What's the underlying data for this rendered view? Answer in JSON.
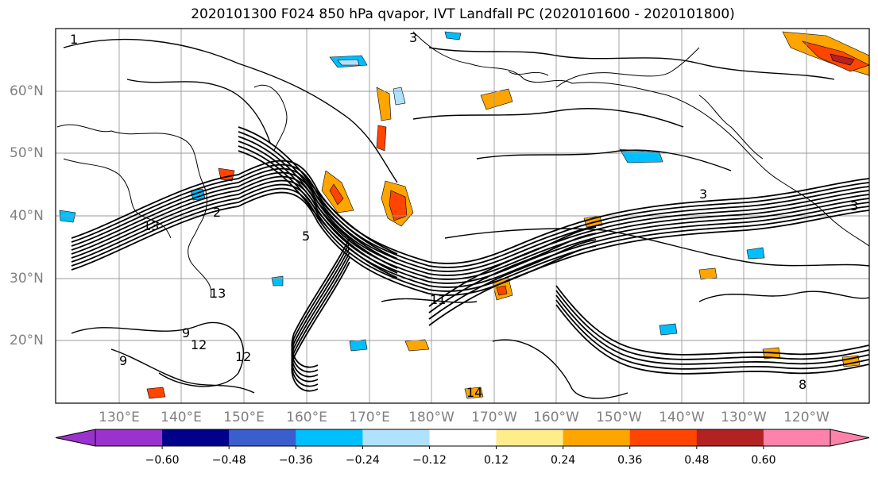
{
  "title": "2020101300 F024 850 hPa qvapor, IVT Landfall PC (2020101600 - 2020101800)",
  "lat_labels": [
    "60°N",
    "50°N",
    "40°N",
    "30°N",
    "20°N"
  ],
  "lon_labels": [
    "130°E",
    "140°E",
    "150°E",
    "160°E",
    "170°E",
    "180°W",
    "170°W",
    "160°W",
    "150°W",
    "140°W",
    "130°W",
    "120°W"
  ],
  "colorbar": {
    "ticks": [
      "−0.60",
      "−0.48",
      "−0.36",
      "−0.24",
      "−0.12",
      "0.12",
      "0.24",
      "0.36",
      "0.48",
      "0.60"
    ],
    "colors": [
      "#9a32cd",
      "#00008b",
      "#3a5fcd",
      "#00bfff",
      "#b0e2ff",
      "#ffffff",
      "#ffec8b",
      "#ffa500",
      "#ff4500",
      "#b22222",
      "#ff82ab"
    ]
  },
  "map": {
    "projection": "latlon",
    "lon_range": [
      "120°E",
      "110°W"
    ],
    "lat_range": [
      "10°N",
      "70°N"
    ],
    "gridlines": true,
    "contour_labels": [
      "1",
      "3",
      "5",
      "11",
      "13",
      "12",
      "14",
      "9",
      "2",
      "8"
    ]
  }
}
